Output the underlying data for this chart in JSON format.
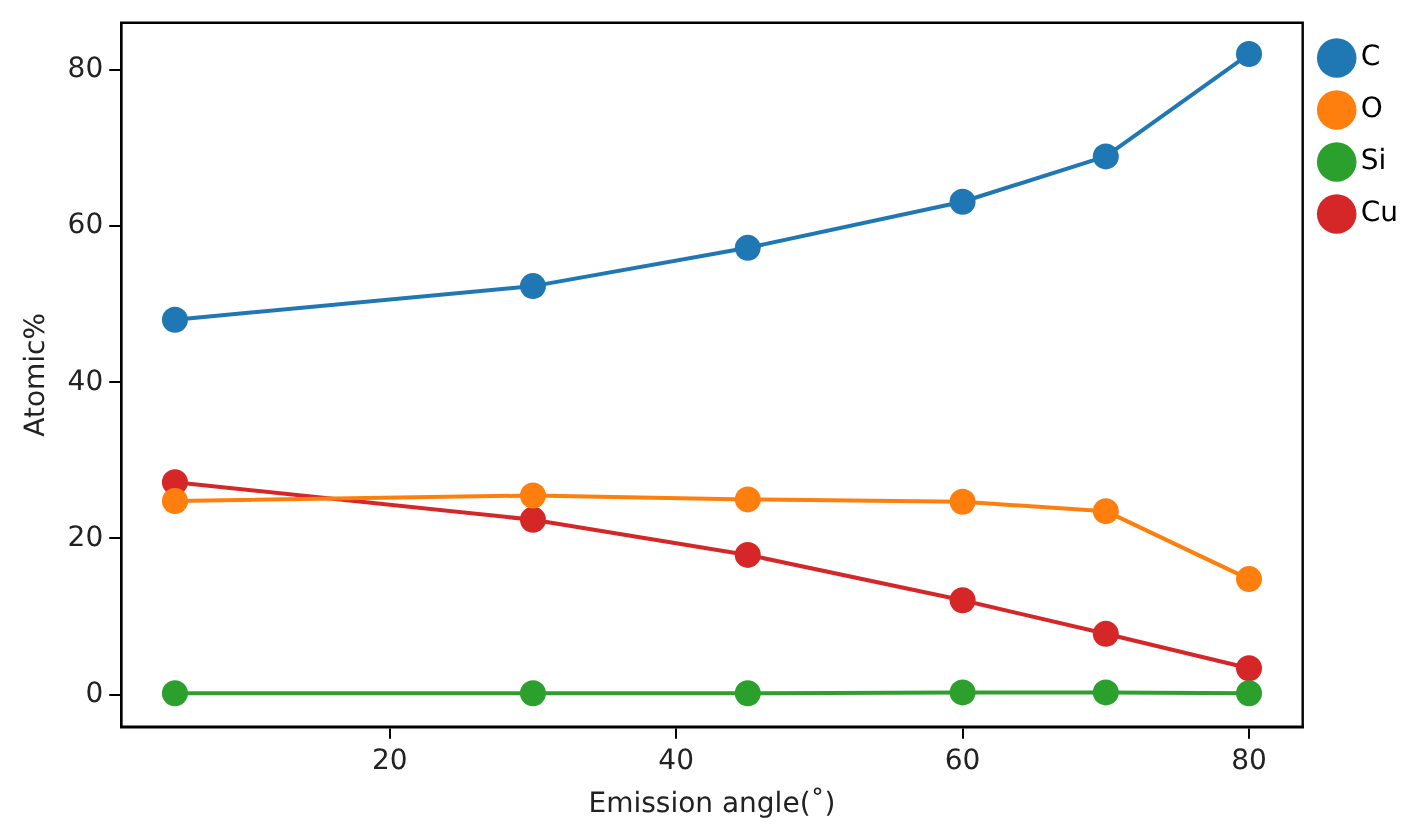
{
  "chart_data": {
    "type": "line",
    "xlabel": "Emission angle(˚)",
    "ylabel": "Atomic%",
    "x": [
      5,
      30,
      45,
      60,
      70,
      80
    ],
    "series": [
      {
        "name": "C",
        "color": "#1f77b4",
        "values": [
          48.0,
          52.3,
          57.2,
          63.1,
          68.9,
          82.0
        ]
      },
      {
        "name": "O",
        "color": "#ff7f0e",
        "values": [
          24.8,
          25.5,
          25.0,
          24.7,
          23.5,
          14.8
        ]
      },
      {
        "name": "Si",
        "color": "#2ca02c",
        "values": [
          0.2,
          0.2,
          0.2,
          0.3,
          0.3,
          0.2
        ]
      },
      {
        "name": "Cu",
        "color": "#d62728",
        "values": [
          27.2,
          22.4,
          17.9,
          12.1,
          7.8,
          3.4
        ]
      }
    ],
    "xlim": [
      1.25,
      83.75
    ],
    "xticks": [
      20,
      40,
      60,
      80
    ],
    "ylim": [
      -4.1,
      86.0
    ],
    "yticks": [
      0,
      20,
      40,
      60,
      80
    ],
    "grid": false,
    "legend": "top right",
    "marker": "circle",
    "line_style": "solid"
  }
}
